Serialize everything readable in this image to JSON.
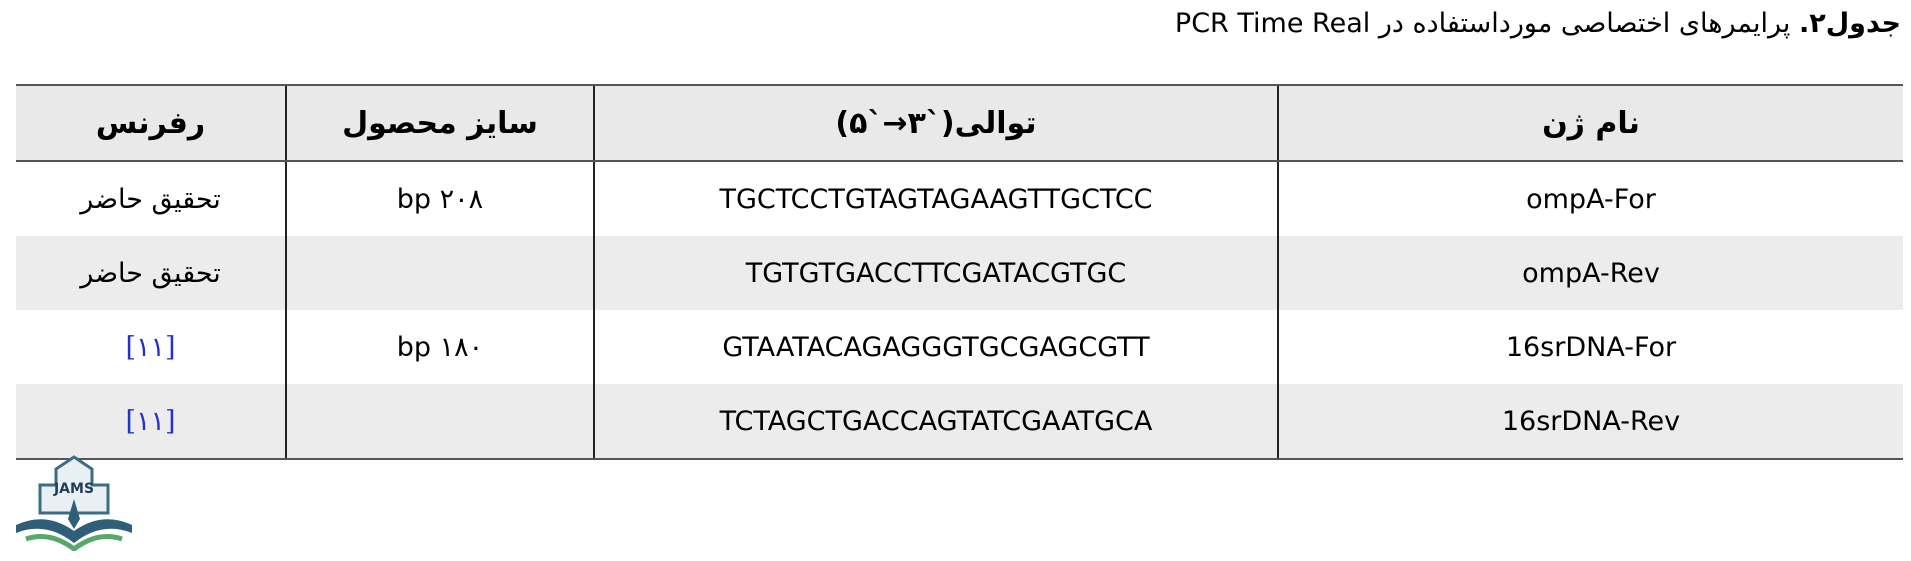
{
  "title": {
    "label": "جدول۲.",
    "text": "پرایمرهای اختصاصی مورداستفاده در PCR Time Real"
  },
  "table": {
    "header": [
      "نام ژن",
      "توالی(`۳→`۵)",
      "سایز محصول",
      "رفرنس"
    ],
    "rows": [
      {
        "gene": "ompA-For",
        "sequence": "TGCTCCTGTAGTAGAAGTTGCTCC",
        "size": "۲۰۸ bp",
        "reference": "تحقیق حاضر"
      },
      {
        "gene": "ompA-Rev",
        "sequence": "TGTGTGACCTTCGATACGTGC",
        "reference": "تحقیق حاضر"
      },
      {
        "gene": "16srDNA-For",
        "sequence": "GTAATACAGAGGGTGCGAGCGTT",
        "size": "۱۸۰ bp",
        "reference": "[۱۱]"
      },
      {
        "gene": "16srDNA-Rev",
        "sequence": "TCTAGCTGACCAGTATCGAATGCA",
        "reference": "[۱۱]"
      }
    ]
  },
  "logo": {
    "text": "JAMS"
  }
}
